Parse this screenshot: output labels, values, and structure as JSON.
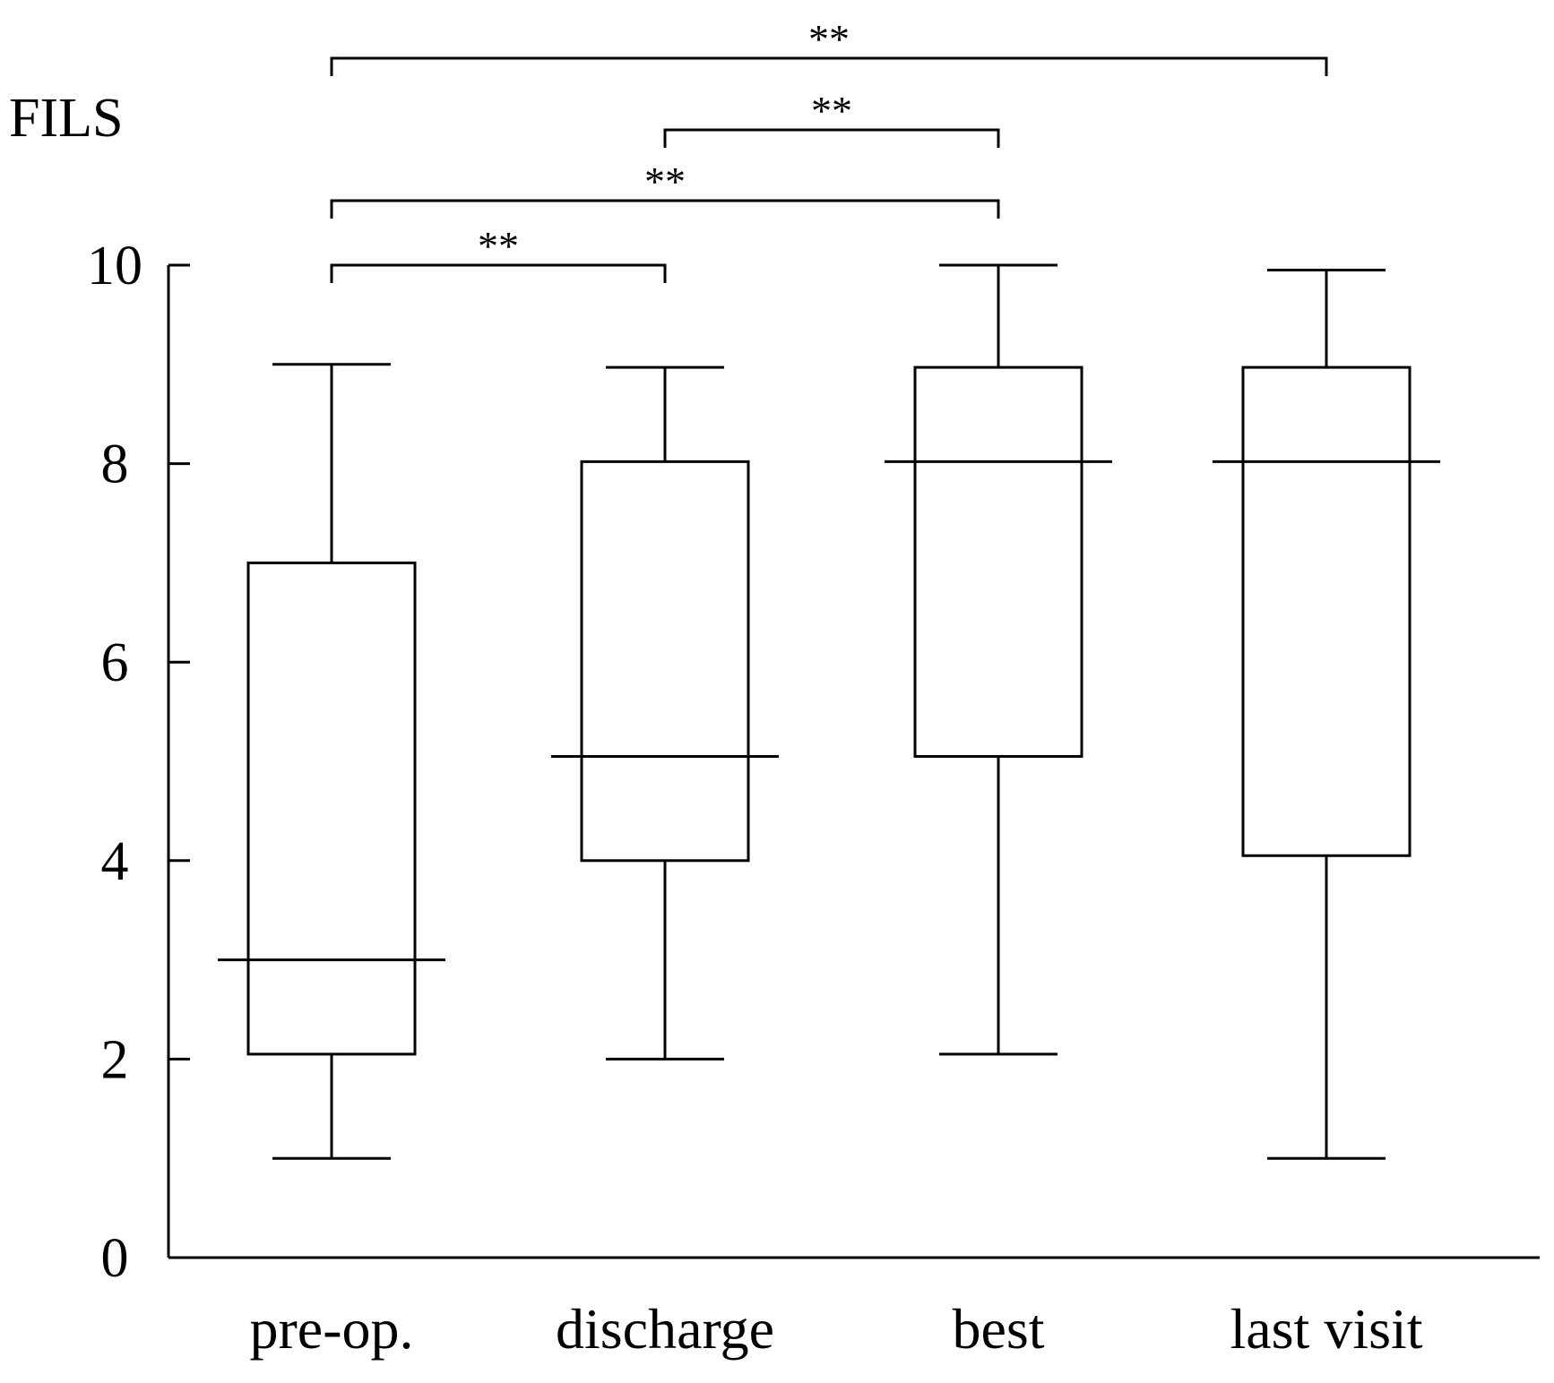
{
  "chart_data": {
    "type": "box",
    "ylabel": "FILS",
    "xlabel": "",
    "ylim": [
      0,
      10
    ],
    "yticks": [
      0,
      2,
      4,
      6,
      8,
      10
    ],
    "categories": [
      "pre-op.",
      "discharge",
      "best",
      "last visit"
    ],
    "boxes": [
      {
        "min": 1,
        "q1": 2.05,
        "median": 3,
        "q3": 7,
        "max": 9
      },
      {
        "min": 2,
        "q1": 4,
        "median": 5.05,
        "q3": 8.02,
        "max": 8.97
      },
      {
        "min": 2.05,
        "q1": 5.05,
        "median": 8.02,
        "q3": 8.97,
        "max": 10
      },
      {
        "min": 1,
        "q1": 4.05,
        "median": 8.02,
        "q3": 8.97,
        "max": 9.95
      }
    ],
    "significance": [
      {
        "from": 0,
        "to": 1,
        "label": "**"
      },
      {
        "from": 0,
        "to": 2,
        "label": "**"
      },
      {
        "from": 1,
        "to": 2,
        "label": "**"
      },
      {
        "from": 0,
        "to": 3,
        "label": "**"
      }
    ],
    "grid": false,
    "legend": "none",
    "colors": {
      "stroke": "#000000",
      "background": "#ffffff"
    }
  }
}
